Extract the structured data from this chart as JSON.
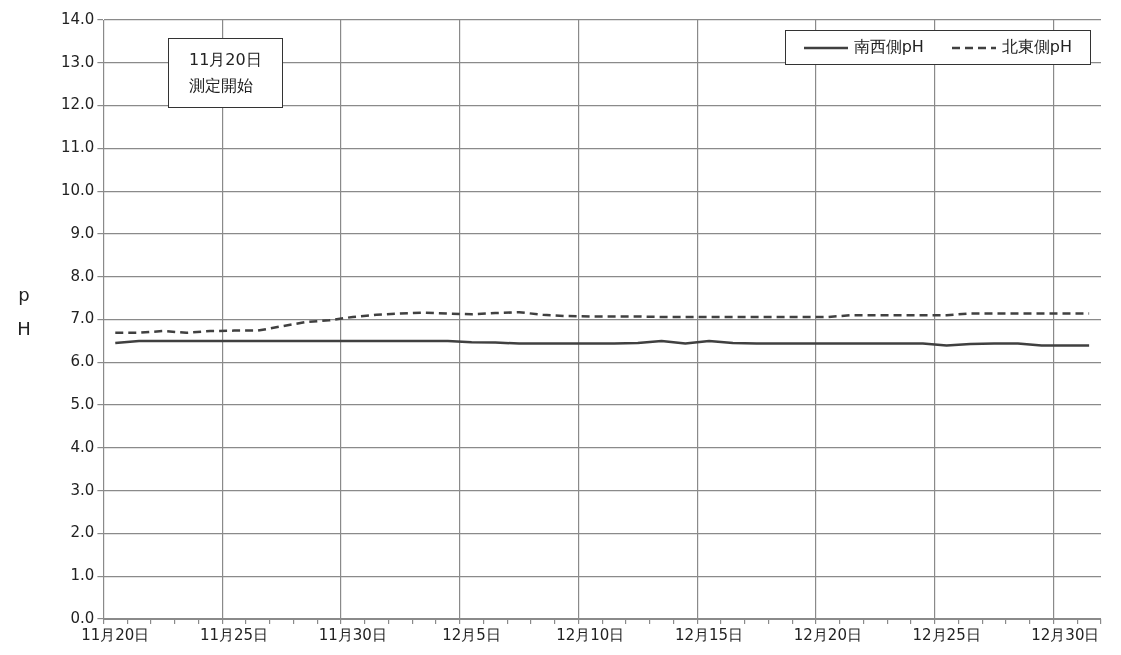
{
  "chart_data": {
    "type": "line",
    "categories": [
      "11月20日",
      null,
      null,
      null,
      null,
      "11月25日",
      null,
      null,
      null,
      null,
      "11月30日",
      null,
      null,
      null,
      null,
      "12月5日",
      null,
      null,
      null,
      null,
      "12月10日",
      null,
      null,
      null,
      null,
      "12月15日",
      null,
      null,
      null,
      null,
      "12月20日",
      null,
      null,
      null,
      null,
      "12月25日",
      null,
      null,
      null,
      null,
      "12月30日",
      null
    ],
    "series": [
      {
        "name": "南西側pH",
        "color": "#404040",
        "line_style": "solid",
        "values": [
          6.45,
          6.5,
          6.5,
          6.5,
          6.5,
          6.5,
          6.5,
          6.5,
          6.5,
          6.5,
          6.5,
          6.5,
          6.5,
          6.5,
          6.5,
          6.47,
          6.46,
          6.44,
          6.44,
          6.44,
          6.44,
          6.44,
          6.45,
          6.5,
          6.44,
          6.5,
          6.45,
          6.44,
          6.44,
          6.44,
          6.44,
          6.44,
          6.44,
          6.44,
          6.44,
          6.39,
          6.43,
          6.44,
          6.44,
          6.39,
          6.39,
          6.39
        ]
      },
      {
        "name": "北東側pH",
        "color": "#404040",
        "line_style": "dashed",
        "values": [
          6.69,
          6.69,
          6.73,
          6.69,
          6.73,
          6.74,
          6.74,
          6.84,
          6.94,
          6.98,
          7.06,
          7.11,
          7.14,
          7.16,
          7.14,
          7.12,
          7.15,
          7.17,
          7.11,
          7.08,
          7.07,
          7.07,
          7.07,
          7.06,
          7.06,
          7.06,
          7.06,
          7.06,
          7.06,
          7.06,
          7.06,
          7.1,
          7.1,
          7.1,
          7.1,
          7.1,
          7.14,
          7.14,
          7.14,
          7.14,
          7.14,
          7.14
        ]
      }
    ],
    "ylabel": "pH",
    "ylim": [
      0,
      14
    ],
    "yticks": [
      {
        "value": 0,
        "label": "0.0"
      },
      {
        "value": 1,
        "label": "1.0"
      },
      {
        "value": 2,
        "label": "2.0"
      },
      {
        "value": 3,
        "label": "3.0"
      },
      {
        "value": 4,
        "label": "4.0"
      },
      {
        "value": 5,
        "label": "5.0"
      },
      {
        "value": 6,
        "label": "6.0"
      },
      {
        "value": 7,
        "label": "7.0"
      },
      {
        "value": 8,
        "label": "8.0"
      },
      {
        "value": 9,
        "label": "9.0"
      },
      {
        "value": 10,
        "label": "10.0"
      },
      {
        "value": 11,
        "label": "11.0"
      },
      {
        "value": 12,
        "label": "12.0"
      },
      {
        "value": 13,
        "label": "13.0"
      },
      {
        "value": 14,
        "label": "14.0"
      }
    ],
    "annotations": [
      "11月20日",
      "測定開始"
    ],
    "grid": true,
    "legend": "top right",
    "marker": "none"
  }
}
